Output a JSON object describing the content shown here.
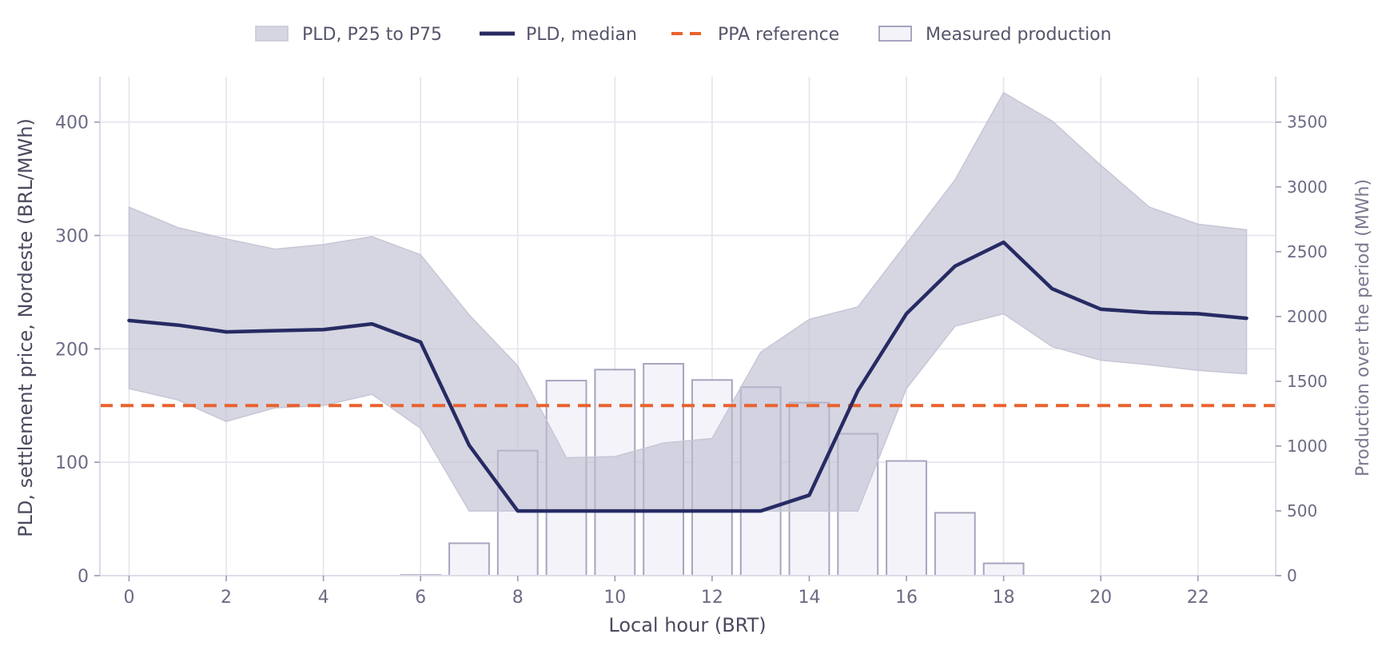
{
  "chart_data": {
    "type": "line",
    "title": "",
    "xlabel": "Local hour (BRT)",
    "ylabel": "PLD, settlement price, Nordeste (BRL/MWh)",
    "ylabel_right": "Production over the period (MWh)",
    "xlim": [
      -0.6,
      23.6
    ],
    "ylim": [
      0,
      400
    ],
    "ylim_right": [
      0,
      3500
    ],
    "x_ticks": [
      0,
      2,
      4,
      6,
      8,
      10,
      12,
      14,
      16,
      18,
      20,
      22
    ],
    "y_ticks": [
      0,
      100,
      200,
      300,
      400
    ],
    "y_ticks_right": [
      0,
      500,
      1000,
      1500,
      2000,
      2500,
      3000,
      3500
    ],
    "grid": true,
    "legend_position": "top-center",
    "x": [
      0,
      1,
      2,
      3,
      4,
      5,
      6,
      7,
      8,
      9,
      10,
      11,
      12,
      13,
      14,
      15,
      16,
      17,
      18,
      19,
      20,
      21,
      22,
      23
    ],
    "series": [
      {
        "name": "PLD, P25 to P75",
        "kind": "band",
        "lower": [
          165,
          155,
          136,
          148,
          150,
          160,
          130,
          57,
          57,
          57,
          57,
          57,
          57,
          57,
          57,
          57,
          165,
          220,
          231,
          202,
          190,
          186,
          181,
          178
        ],
        "upper": [
          325,
          307,
          297,
          288,
          292,
          299,
          283,
          230,
          185,
          104,
          105,
          117,
          121,
          197,
          226,
          237,
          293,
          349,
          426,
          401,
          362,
          325,
          310,
          305
        ],
        "color": "#d6d6e1"
      },
      {
        "name": "PLD, median",
        "kind": "line",
        "values": [
          225,
          221,
          215,
          216,
          217,
          222,
          206,
          115,
          57,
          57,
          57,
          57,
          57,
          57,
          71,
          163,
          231,
          273,
          294,
          253,
          235,
          232,
          231,
          227
        ],
        "color": "#272b63"
      },
      {
        "name": "PPA reference",
        "kind": "hline",
        "value": 150,
        "color": "#e8622e"
      },
      {
        "name": "Measured production",
        "kind": "bar",
        "axis": "right",
        "values": [
          0,
          0,
          0,
          0,
          0,
          0,
          5,
          250,
          965,
          1505,
          1590,
          1635,
          1510,
          1455,
          1335,
          1095,
          885,
          485,
          95,
          0,
          0,
          0,
          0,
          0
        ],
        "color": "#f3f3f9",
        "edge_color": "#a6a6bf"
      }
    ]
  }
}
